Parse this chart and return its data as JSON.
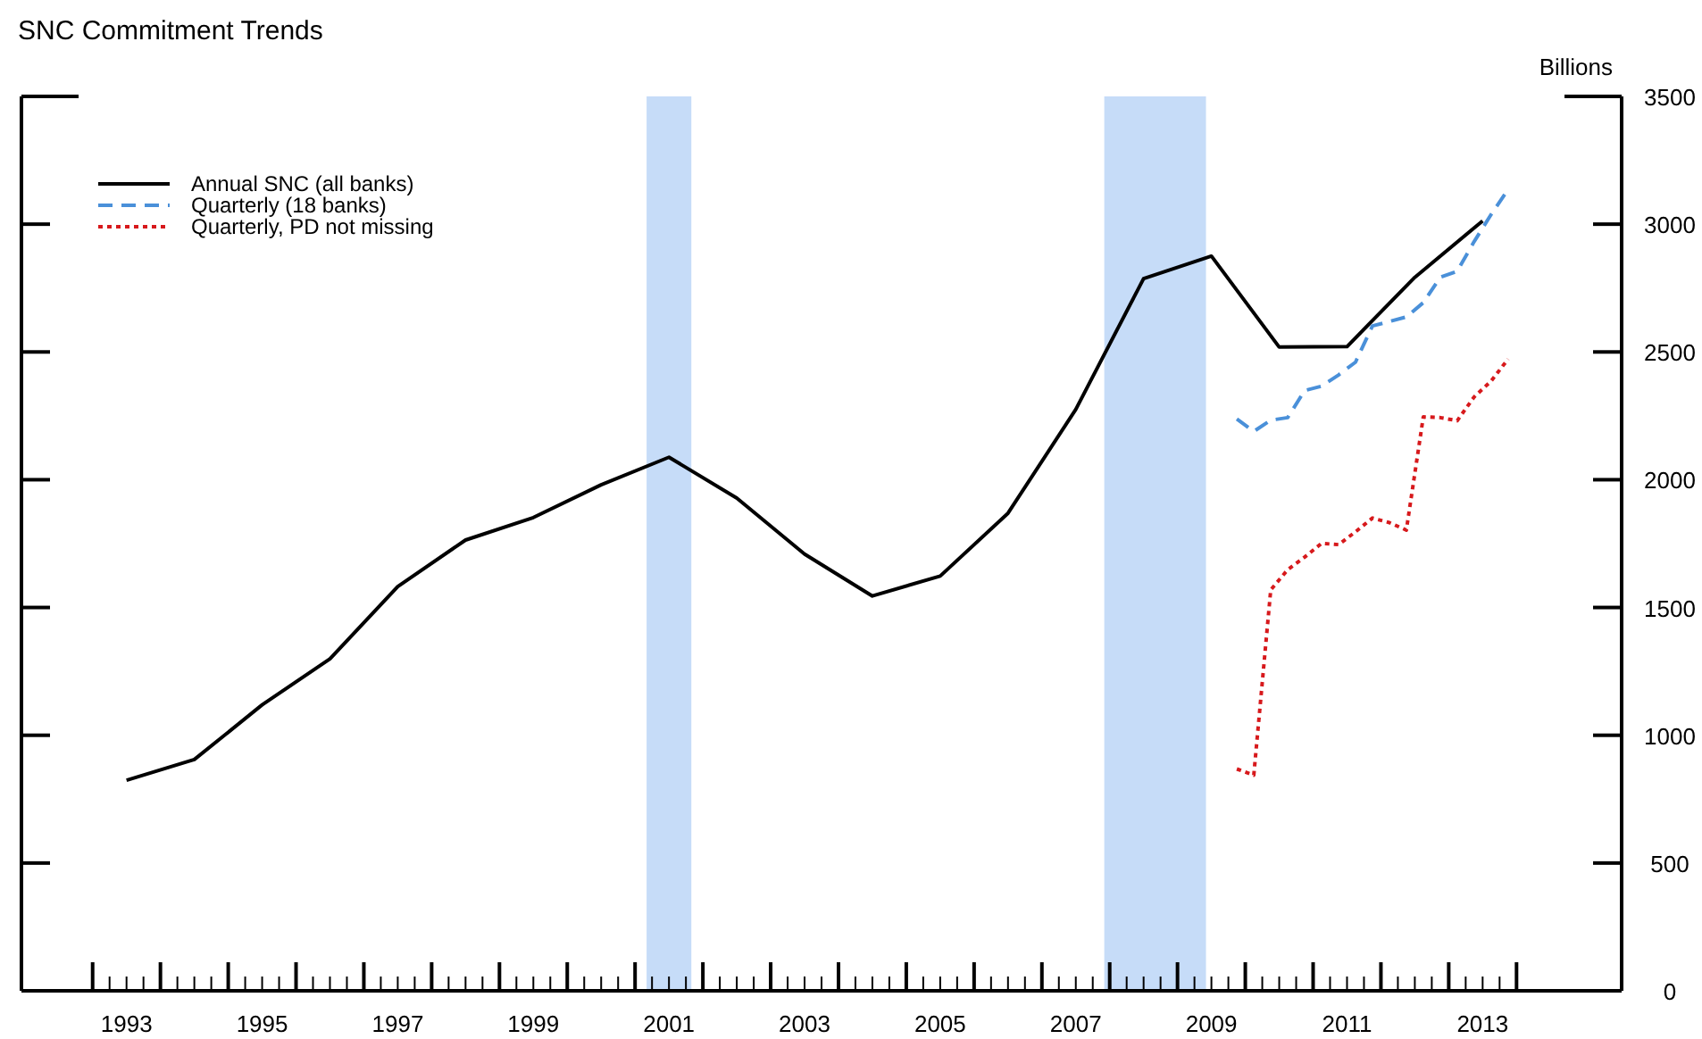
{
  "chart_data": {
    "type": "line",
    "title": "SNC Commitment Trends",
    "ylabel": "Billions",
    "legend": "top left",
    "xlim": [
      1991.95,
      2015.55
    ],
    "xticks": [
      {
        "value": 1993,
        "label": null
      },
      {
        "value": 1993.25,
        "label": null
      },
      {
        "value": 1993.5,
        "label": "1993"
      },
      {
        "value": 1993.75,
        "label": null
      },
      {
        "value": 1994,
        "label": null
      },
      {
        "value": 1994.25,
        "label": null
      },
      {
        "value": 1994.5,
        "label": null
      },
      {
        "value": 1994.75,
        "label": null
      },
      {
        "value": 1995,
        "label": null
      },
      {
        "value": 1995.25,
        "label": null
      },
      {
        "value": 1995.5,
        "label": "1995"
      },
      {
        "value": 1995.75,
        "label": null
      },
      {
        "value": 1996,
        "label": null
      },
      {
        "value": 1996.25,
        "label": null
      },
      {
        "value": 1996.5,
        "label": null
      },
      {
        "value": 1996.75,
        "label": null
      },
      {
        "value": 1997,
        "label": null
      },
      {
        "value": 1997.25,
        "label": null
      },
      {
        "value": 1997.5,
        "label": "1997"
      },
      {
        "value": 1997.75,
        "label": null
      },
      {
        "value": 1998,
        "label": null
      },
      {
        "value": 1998.25,
        "label": null
      },
      {
        "value": 1998.5,
        "label": null
      },
      {
        "value": 1998.75,
        "label": null
      },
      {
        "value": 1999,
        "label": null
      },
      {
        "value": 1999.25,
        "label": null
      },
      {
        "value": 1999.5,
        "label": "1999"
      },
      {
        "value": 1999.75,
        "label": null
      },
      {
        "value": 2000,
        "label": null
      },
      {
        "value": 2000.25,
        "label": null
      },
      {
        "value": 2000.5,
        "label": null
      },
      {
        "value": 2000.75,
        "label": null
      },
      {
        "value": 2001,
        "label": null
      },
      {
        "value": 2001.25,
        "label": null
      },
      {
        "value": 2001.5,
        "label": "2001"
      },
      {
        "value": 2001.75,
        "label": null
      },
      {
        "value": 2002,
        "label": null
      },
      {
        "value": 2002.25,
        "label": null
      },
      {
        "value": 2002.5,
        "label": null
      },
      {
        "value": 2002.75,
        "label": null
      },
      {
        "value": 2003,
        "label": null
      },
      {
        "value": 2003.25,
        "label": null
      },
      {
        "value": 2003.5,
        "label": "2003"
      },
      {
        "value": 2003.75,
        "label": null
      },
      {
        "value": 2004,
        "label": null
      },
      {
        "value": 2004.25,
        "label": null
      },
      {
        "value": 2004.5,
        "label": null
      },
      {
        "value": 2004.75,
        "label": null
      },
      {
        "value": 2005,
        "label": null
      },
      {
        "value": 2005.25,
        "label": null
      },
      {
        "value": 2005.5,
        "label": "2005"
      },
      {
        "value": 2005.75,
        "label": null
      },
      {
        "value": 2006,
        "label": null
      },
      {
        "value": 2006.25,
        "label": null
      },
      {
        "value": 2006.5,
        "label": null
      },
      {
        "value": 2006.75,
        "label": null
      },
      {
        "value": 2007,
        "label": null
      },
      {
        "value": 2007.25,
        "label": null
      },
      {
        "value": 2007.5,
        "label": "2007"
      },
      {
        "value": 2007.75,
        "label": null
      },
      {
        "value": 2008,
        "label": null
      },
      {
        "value": 2008.25,
        "label": null
      },
      {
        "value": 2008.5,
        "label": null
      },
      {
        "value": 2008.75,
        "label": null
      },
      {
        "value": 2009,
        "label": null
      },
      {
        "value": 2009.25,
        "label": null
      },
      {
        "value": 2009.5,
        "label": "2009"
      },
      {
        "value": 2009.75,
        "label": null
      },
      {
        "value": 2010,
        "label": null
      },
      {
        "value": 2010.25,
        "label": null
      },
      {
        "value": 2010.5,
        "label": null
      },
      {
        "value": 2010.75,
        "label": null
      },
      {
        "value": 2011,
        "label": null
      },
      {
        "value": 2011.25,
        "label": null
      },
      {
        "value": 2011.5,
        "label": "2011"
      },
      {
        "value": 2011.75,
        "label": null
      },
      {
        "value": 2012,
        "label": null
      },
      {
        "value": 2012.25,
        "label": null
      },
      {
        "value": 2012.5,
        "label": null
      },
      {
        "value": 2012.75,
        "label": null
      },
      {
        "value": 2013,
        "label": null
      },
      {
        "value": 2013.25,
        "label": null
      },
      {
        "value": 2013.5,
        "label": "2013"
      },
      {
        "value": 2013.75,
        "label": null
      },
      {
        "value": 2014,
        "label": null
      }
    ],
    "ylim": [
      0,
      3500
    ],
    "yticks": [
      0,
      500,
      1000,
      1500,
      2000,
      2500,
      3000,
      3500
    ],
    "bands": [
      {
        "axis": "x",
        "from": 2001.17,
        "to": 2001.83,
        "color": "#c6dcf8"
      },
      {
        "axis": "x",
        "from": 2007.92,
        "to": 2009.42,
        "color": "#c6dcf8"
      }
    ],
    "series": [
      {
        "name": "Annual SNC (all banks)",
        "color": "#000000",
        "line_style": "solid",
        "x": [
          1993.5,
          1994.5,
          1995.5,
          1996.5,
          1997.5,
          1998.5,
          1999.5,
          2000.5,
          2001.5,
          2002.5,
          2003.5,
          2004.5,
          2005.5,
          2006.5,
          2007.5,
          2008.5,
          2009.5,
          2010.5,
          2011.5,
          2012.5,
          2013.5
        ],
        "values": [
          824,
          905,
          1119,
          1299,
          1582,
          1764,
          1852,
          1980,
          2088,
          1928,
          1709,
          1545,
          1623,
          1869,
          2275,
          2787,
          2875,
          2519,
          2521,
          2792,
          3013
        ]
      },
      {
        "name": "Quarterly (18 banks)",
        "color": "#4a90d9",
        "line_style": "dashed",
        "x": [
          2009.875,
          2010.125,
          2010.375,
          2010.625,
          2010.875,
          2011.125,
          2011.375,
          2011.625,
          2011.875,
          2012.125,
          2012.375,
          2012.625,
          2012.875,
          2013.125,
          2013.375,
          2013.625,
          2013.875
        ],
        "values": [
          2238,
          2189,
          2233,
          2243,
          2349,
          2366,
          2410,
          2460,
          2602,
          2619,
          2637,
          2693,
          2792,
          2816,
          2932,
          3038,
          3136
        ]
      },
      {
        "name": "Quarterly, PD not missing",
        "color": "#d7191c",
        "line_style": "dotted",
        "x": [
          2009.875,
          2010.125,
          2010.375,
          2010.625,
          2010.875,
          2011.125,
          2011.375,
          2011.625,
          2011.875,
          2012.125,
          2012.375,
          2012.625,
          2012.875,
          2013.125,
          2013.375,
          2013.625,
          2013.875
        ],
        "values": [
          868,
          844,
          1569,
          1648,
          1697,
          1751,
          1746,
          1796,
          1850,
          1832,
          1803,
          2246,
          2243,
          2231,
          2324,
          2386,
          2472
        ]
      }
    ]
  }
}
